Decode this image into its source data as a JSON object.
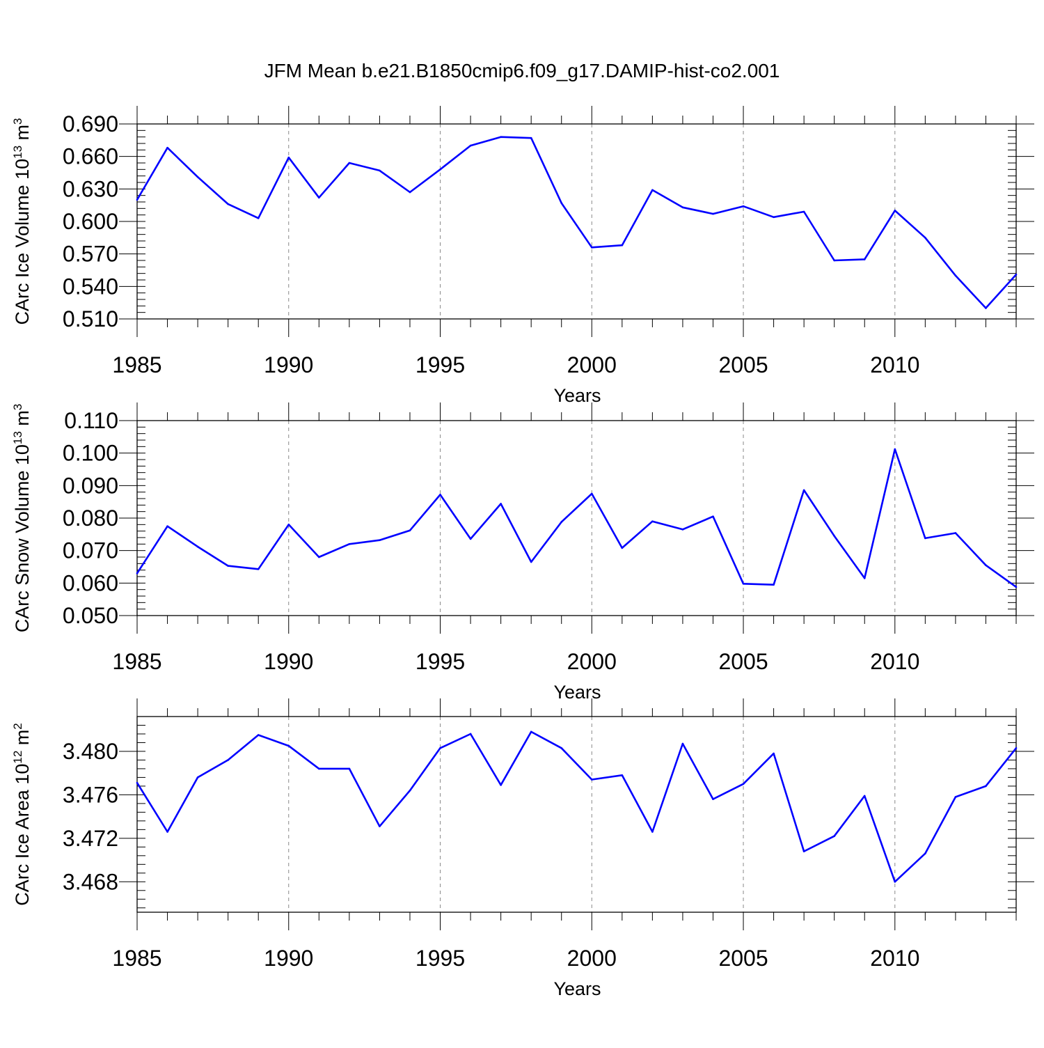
{
  "figure": {
    "title": "JFM Mean b.e21.B1850cmip6.f09_g17.DAMIP-hist-co2.001",
    "line_color": "#0000ff",
    "grid_color": "#888888"
  },
  "chart_data": [
    {
      "type": "line",
      "title": "",
      "xlabel": "Years",
      "ylabel": "CArc Ice Volume 10",
      "ylabel_exp": "13",
      "ylabel_unit": " m",
      "ylabel_unit_exp": "3",
      "xlim": [
        1985,
        2014
      ],
      "ylim": [
        0.51,
        0.69
      ],
      "xticks": [
        1985,
        1990,
        1995,
        2000,
        2005,
        2010
      ],
      "xtick_labels": [
        "1985",
        "1990",
        "1995",
        "2000",
        "2005",
        "2010"
      ],
      "yticks": [
        0.51,
        0.54,
        0.57,
        0.6,
        0.63,
        0.66,
        0.69
      ],
      "ytick_labels": [
        "0.510",
        "0.540",
        "0.570",
        "0.600",
        "0.630",
        "0.660",
        "0.690"
      ],
      "yminor_step": 0.006,
      "grid": "vertical dashed at major x ticks",
      "x": [
        1985,
        1986,
        1987,
        1988,
        1989,
        1990,
        1991,
        1992,
        1993,
        1994,
        1995,
        1996,
        1997,
        1998,
        1999,
        2000,
        2001,
        2002,
        2003,
        2004,
        2005,
        2006,
        2007,
        2008,
        2009,
        2010,
        2011,
        2012,
        2013,
        2014
      ],
      "series": [
        {
          "values": [
            0.62,
            0.668,
            0.641,
            0.616,
            0.603,
            0.659,
            0.622,
            0.654,
            0.647,
            0.627,
            0.648,
            0.67,
            0.678,
            0.677,
            0.617,
            0.576,
            0.578,
            0.629,
            0.613,
            0.607,
            0.614,
            0.604,
            0.609,
            0.564,
            0.565,
            0.61,
            0.585,
            0.55,
            0.52,
            0.551
          ]
        }
      ]
    },
    {
      "type": "line",
      "title": "",
      "xlabel": "Years",
      "ylabel": "CArc Snow Volume 10",
      "ylabel_exp": "13",
      "ylabel_unit": " m",
      "ylabel_unit_exp": "3",
      "xlim": [
        1985,
        2014
      ],
      "ylim": [
        0.05,
        0.11
      ],
      "xticks": [
        1985,
        1990,
        1995,
        2000,
        2005,
        2010
      ],
      "xtick_labels": [
        "1985",
        "1990",
        "1995",
        "2000",
        "2005",
        "2010"
      ],
      "yticks": [
        0.05,
        0.06,
        0.07,
        0.08,
        0.09,
        0.1,
        0.11
      ],
      "ytick_labels": [
        "0.050",
        "0.060",
        "0.070",
        "0.080",
        "0.090",
        "0.100",
        "0.110"
      ],
      "yminor_step": 0.002,
      "grid": "vertical dashed at major x ticks",
      "x": [
        1985,
        1986,
        1987,
        1988,
        1989,
        1990,
        1991,
        1992,
        1993,
        1994,
        1995,
        1996,
        1997,
        1998,
        1999,
        2000,
        2001,
        2002,
        2003,
        2004,
        2005,
        2006,
        2007,
        2008,
        2009,
        2010,
        2011,
        2012,
        2013,
        2014
      ],
      "series": [
        {
          "values": [
            0.063,
            0.0775,
            0.0712,
            0.0653,
            0.0643,
            0.078,
            0.068,
            0.072,
            0.0732,
            0.0762,
            0.0872,
            0.0736,
            0.0844,
            0.0665,
            0.0788,
            0.0875,
            0.0708,
            0.079,
            0.0765,
            0.0805,
            0.0598,
            0.0595,
            0.0886,
            0.0745,
            0.0615,
            0.1012,
            0.0738,
            0.0754,
            0.0655,
            0.0588
          ]
        }
      ]
    },
    {
      "type": "line",
      "title": "",
      "xlabel": "Years",
      "ylabel": "CArc Ice Area 10",
      "ylabel_exp": "12",
      "ylabel_unit": " m",
      "ylabel_unit_exp": "2",
      "xlim": [
        1985,
        2014
      ],
      "ylim": [
        3.4652,
        3.4832
      ],
      "xticks": [
        1985,
        1990,
        1995,
        2000,
        2005,
        2010
      ],
      "xtick_labels": [
        "1985",
        "1990",
        "1995",
        "2000",
        "2005",
        "2010"
      ],
      "yticks": [
        3.468,
        3.472,
        3.476,
        3.48
      ],
      "ytick_labels": [
        "3.468",
        "3.472",
        "3.476",
        "3.480"
      ],
      "yminor_step": 0.0008,
      "grid": "vertical dashed at major x ticks",
      "x": [
        1985,
        1986,
        1987,
        1988,
        1989,
        1990,
        1991,
        1992,
        1993,
        1994,
        1995,
        1996,
        1997,
        1998,
        1999,
        2000,
        2001,
        2002,
        2003,
        2004,
        2005,
        2006,
        2007,
        2008,
        2009,
        2010,
        2011,
        2012,
        2013,
        2014
      ],
      "series": [
        {
          "values": [
            3.4771,
            3.4726,
            3.4776,
            3.4792,
            3.4815,
            3.4805,
            3.4784,
            3.4784,
            3.4731,
            3.4764,
            3.4803,
            3.4816,
            3.4769,
            3.4818,
            3.4803,
            3.4774,
            3.4778,
            3.4726,
            3.4807,
            3.4756,
            3.477,
            3.4798,
            3.4708,
            3.4722,
            3.4759,
            3.468,
            3.4706,
            3.4758,
            3.4768,
            3.4803
          ]
        }
      ]
    }
  ]
}
